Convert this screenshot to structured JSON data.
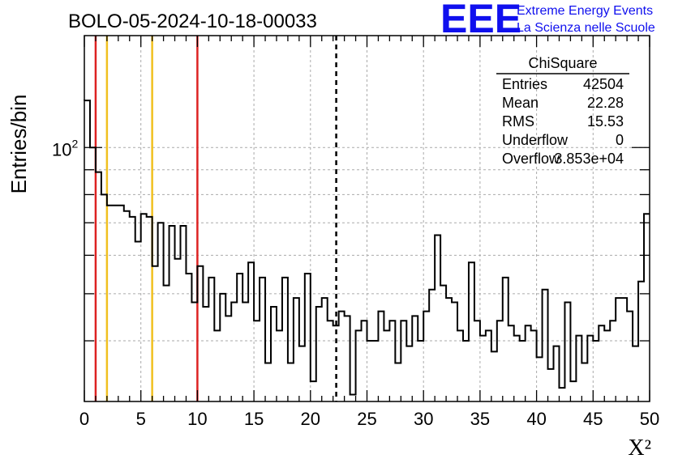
{
  "chart_data": {
    "type": "histogram",
    "title": "BOLO-05-2024-10-18-00033",
    "xlabel": "X²",
    "ylabel": "Entries/bin",
    "xlim": [
      0,
      50
    ],
    "ylim_log": [
      30,
      170
    ],
    "y_scale": "log",
    "grid": true,
    "bin_width": 0.5,
    "x_ticks": [
      0,
      5,
      10,
      15,
      20,
      25,
      30,
      35,
      40,
      45,
      50
    ],
    "x_tick_labels": [
      "0",
      "5",
      "10",
      "15",
      "20",
      "25",
      "30",
      "35",
      "40",
      "45",
      "50"
    ],
    "y_tick_label_base": "10",
    "y_tick_label_exp": "2",
    "y_tick_value": 100,
    "counts": [
      125,
      100,
      89,
      80,
      76,
      76,
      76,
      74,
      72,
      64,
      73,
      72,
      57,
      70,
      52,
      69,
      59,
      69,
      55,
      48,
      57,
      47,
      54,
      42,
      50,
      45,
      48,
      55,
      48,
      58,
      44,
      54,
      36,
      47,
      42,
      54,
      36,
      49,
      39,
      55,
      33,
      47,
      49,
      44,
      43,
      46,
      45,
      31,
      42,
      44,
      40,
      40,
      46,
      42,
      44,
      36,
      44,
      39,
      45,
      40,
      46,
      51,
      66,
      52,
      49,
      48,
      42,
      40,
      58,
      44,
      41,
      42,
      38,
      44,
      54,
      43,
      41,
      40,
      43,
      42,
      37,
      51,
      35,
      39,
      32,
      48,
      33,
      41,
      36,
      41,
      40,
      43,
      42,
      44,
      49,
      49,
      46,
      39,
      53,
      73
    ],
    "vlines": [
      {
        "x": 1,
        "color": "#dd2222",
        "style": "solid"
      },
      {
        "x": 2,
        "color": "#f0c020",
        "style": "solid"
      },
      {
        "x": 6,
        "color": "#f0c020",
        "style": "solid"
      },
      {
        "x": 10,
        "color": "#dd2222",
        "style": "solid"
      },
      {
        "x": 22.28,
        "color": "#000000",
        "style": "dashed"
      }
    ],
    "stats_box": {
      "title": "ChiSquare",
      "rows": [
        {
          "label": "Entries",
          "value": "42504"
        },
        {
          "label": "Mean",
          "value": "22.28"
        },
        {
          "label": "RMS",
          "value": "15.53"
        },
        {
          "label": "Underflow",
          "value": "0"
        },
        {
          "label": "Overflow",
          "value": "3.853e+04"
        }
      ]
    }
  },
  "logo": {
    "text": "EEE",
    "line1": "Extreme Energy Events",
    "line2": "La Scienza nelle Scuole",
    "color": "#1010ee"
  }
}
